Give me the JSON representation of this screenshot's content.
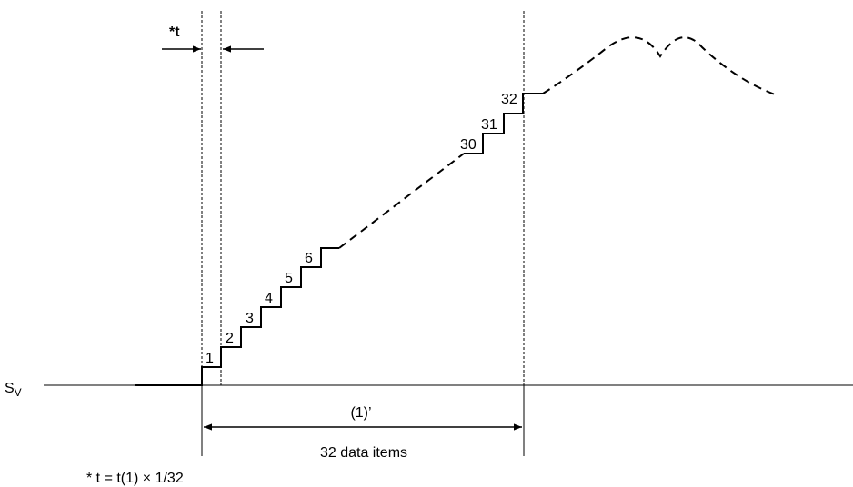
{
  "baseline_label": {
    "main": "S",
    "sub": "V"
  },
  "interval_label": "*t",
  "step_labels": [
    "1",
    "2",
    "3",
    "4",
    "5",
    "6",
    "30",
    "31",
    "32"
  ],
  "span_label": "(1)’",
  "span_caption": "32 data items",
  "footnote": "* t = t(1) × 1/32",
  "colors": {
    "ink": "#000000",
    "background": "#ffffff"
  }
}
